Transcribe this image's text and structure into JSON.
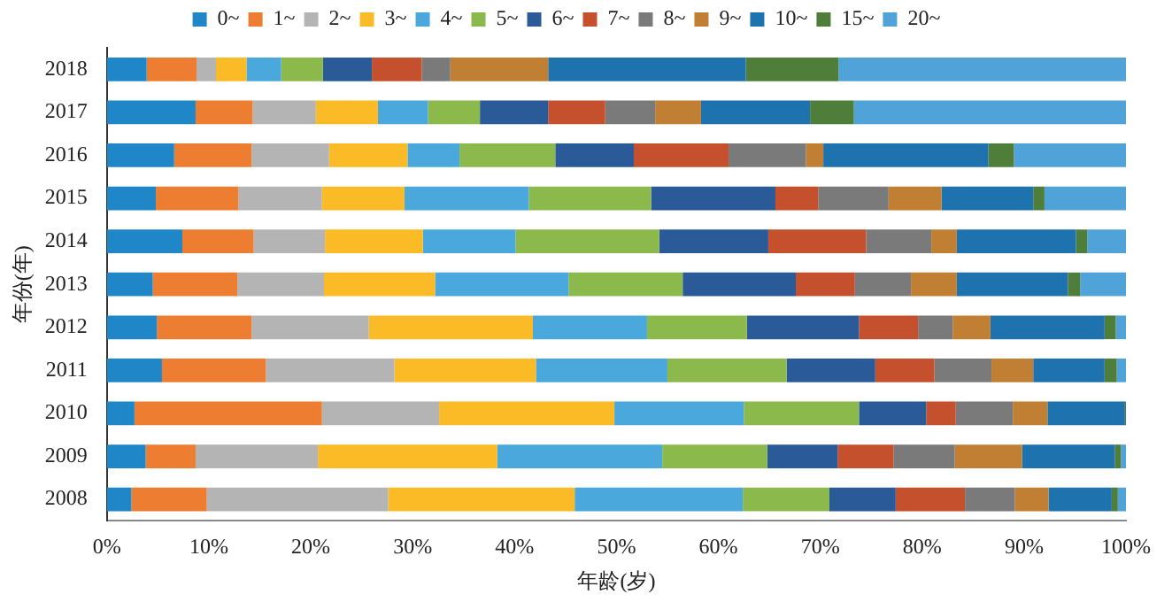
{
  "chart_data": {
    "type": "bar",
    "orientation": "horizontal",
    "stacked": true,
    "xlabel": "年龄(岁)",
    "ylabel": "年份(年)",
    "legend": "top",
    "grid": false,
    "categories": [
      "2018",
      "2017",
      "2016",
      "2015",
      "2014",
      "2013",
      "2012",
      "2011",
      "2010",
      "2009",
      "2008"
    ],
    "xlim": [
      0,
      100
    ],
    "xticks": [
      {
        "value": 0,
        "label": "0%"
      },
      {
        "value": 10,
        "label": "10%"
      },
      {
        "value": 20,
        "label": "20%"
      },
      {
        "value": 30,
        "label": "30%"
      },
      {
        "value": 40,
        "label": "40%"
      },
      {
        "value": 50,
        "label": "50%"
      },
      {
        "value": 60,
        "label": "60%"
      },
      {
        "value": 70,
        "label": "70%"
      },
      {
        "value": 80,
        "label": "80%"
      },
      {
        "value": 90,
        "label": "90%"
      },
      {
        "value": 100,
        "label": "100%"
      }
    ],
    "series": [
      {
        "name": "0~",
        "color": "#1f86c8",
        "values": [
          3.9,
          8.7,
          6.6,
          4.8,
          7.4,
          4.5,
          4.9,
          5.4,
          2.7,
          3.8,
          2.4
        ]
      },
      {
        "name": "1~",
        "color": "#ed7d31",
        "values": [
          4.9,
          5.6,
          7.6,
          8.1,
          7.0,
          8.3,
          9.3,
          10.2,
          18.4,
          4.9,
          7.4
        ]
      },
      {
        "name": "2~",
        "color": "#b4b4b4",
        "values": [
          1.9,
          6.2,
          7.6,
          8.2,
          7.0,
          8.5,
          11.5,
          12.6,
          11.5,
          12.0,
          17.8
        ]
      },
      {
        "name": "3~",
        "color": "#fbbb26",
        "values": [
          3.0,
          6.1,
          7.7,
          8.1,
          9.6,
          10.9,
          16.1,
          13.9,
          17.2,
          17.6,
          18.3
        ]
      },
      {
        "name": "4~",
        "color": "#4aa8dc",
        "values": [
          3.4,
          4.9,
          5.1,
          12.2,
          9.1,
          13.1,
          11.2,
          12.9,
          12.7,
          16.2,
          16.5
        ]
      },
      {
        "name": "5~",
        "color": "#8bb94b",
        "values": [
          4.1,
          5.1,
          9.4,
          12.0,
          14.1,
          11.2,
          9.8,
          11.7,
          11.3,
          10.3,
          8.5
        ]
      },
      {
        "name": "6~",
        "color": "#2a5a97",
        "values": [
          4.8,
          6.7,
          7.7,
          12.2,
          10.7,
          11.1,
          11.0,
          8.7,
          6.6,
          6.9,
          6.5
        ]
      },
      {
        "name": "7~",
        "color": "#c5502d",
        "values": [
          4.9,
          5.6,
          9.3,
          4.2,
          9.6,
          5.8,
          5.8,
          5.8,
          2.9,
          5.5,
          6.8
        ]
      },
      {
        "name": "8~",
        "color": "#7a7a7a",
        "values": [
          2.8,
          4.9,
          7.6,
          6.9,
          6.4,
          5.5,
          3.4,
          5.6,
          5.6,
          6.0,
          4.9
        ]
      },
      {
        "name": "9~",
        "color": "#c07f33",
        "values": [
          9.6,
          4.5,
          1.7,
          5.2,
          2.5,
          4.5,
          3.7,
          4.1,
          3.4,
          6.6,
          3.3
        ]
      },
      {
        "name": "10~",
        "color": "#1e72ad",
        "values": [
          19.4,
          10.7,
          16.2,
          9.0,
          11.7,
          10.9,
          11.2,
          7.0,
          7.6,
          9.1,
          6.2
        ]
      },
      {
        "name": "15~",
        "color": "#4e7e3a",
        "values": [
          9.1,
          4.3,
          2.5,
          1.1,
          1.1,
          1.2,
          1.1,
          1.2,
          0.1,
          0.6,
          0.6
        ]
      },
      {
        "name": "20~",
        "color": "#4fa3d9",
        "values": [
          28.2,
          26.7,
          11.0,
          8.0,
          3.8,
          4.5,
          1.0,
          0.9,
          0.0,
          0.5,
          0.8
        ]
      }
    ]
  }
}
